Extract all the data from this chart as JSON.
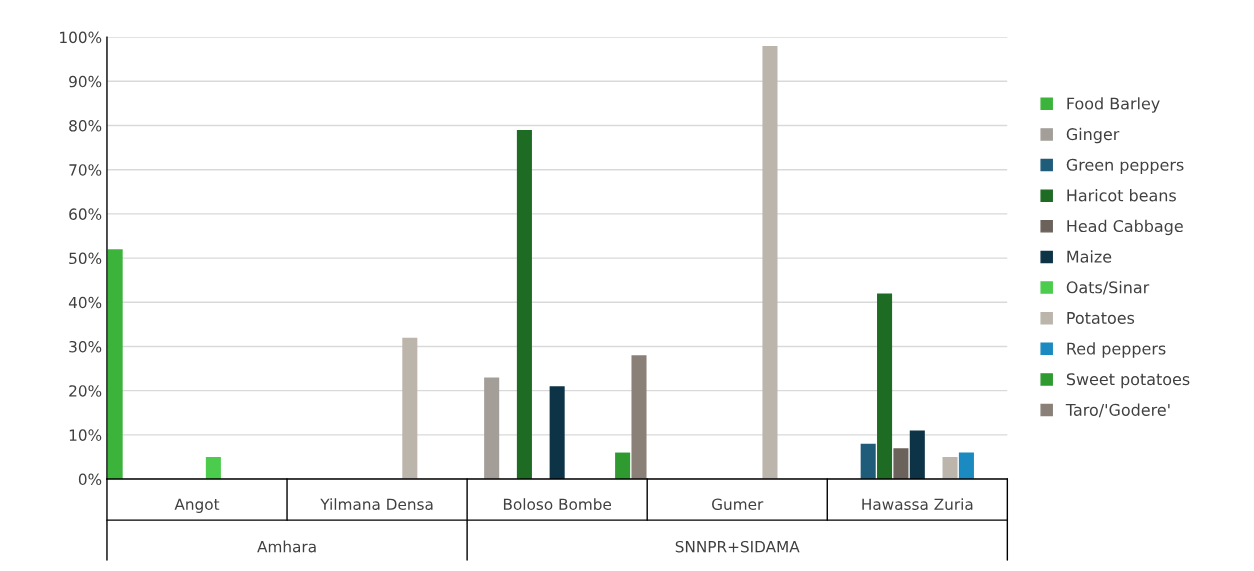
{
  "chart_data": {
    "type": "bar",
    "categories": [
      "Angot",
      "Yilmana Densa",
      "Boloso Bombe",
      "Gumer",
      "Hawassa Zuria"
    ],
    "series": [
      {
        "name": "Food Barley",
        "color": "#3cb43c",
        "values": [
          52,
          0,
          0,
          0,
          0
        ]
      },
      {
        "name": "Ginger",
        "color": "#a39e98",
        "values": [
          0,
          0,
          23,
          0,
          0
        ]
      },
      {
        "name": "Green peppers",
        "color": "#1f5c7a",
        "values": [
          0,
          0,
          0,
          0,
          8
        ]
      },
      {
        "name": "Haricot beans",
        "color": "#1e6b23",
        "values": [
          0,
          0,
          79,
          0,
          42
        ]
      },
      {
        "name": "Head Cabbage",
        "color": "#6b625b",
        "values": [
          0,
          0,
          0,
          0,
          7
        ]
      },
      {
        "name": "Maize",
        "color": "#0d3346",
        "values": [
          0,
          0,
          21,
          0,
          11
        ]
      },
      {
        "name": "Oats/Sinar",
        "color": "#4ccc4c",
        "values": [
          5,
          0,
          0,
          0,
          0
        ]
      },
      {
        "name": "Potatoes",
        "color": "#bcb5ab",
        "values": [
          0,
          32,
          0,
          98,
          5
        ]
      },
      {
        "name": "Red peppers",
        "color": "#1a8ac0",
        "values": [
          0,
          0,
          0,
          0,
          6
        ]
      },
      {
        "name": "Sweet potatoes",
        "color": "#2e9a30",
        "values": [
          0,
          0,
          6,
          0,
          0
        ]
      },
      {
        "name": "Taro/'Godere'",
        "color": "#8a8078",
        "values": [
          0,
          0,
          28,
          0,
          0
        ]
      }
    ],
    "annotations": [
      "Amhara",
      "SNNPR+SIDAMA"
    ],
    "ylim": [
      0,
      100
    ],
    "yticks": [
      {
        "value": 0,
        "label": "0%"
      },
      {
        "value": 10,
        "label": "10%"
      },
      {
        "value": 20,
        "label": "20%"
      },
      {
        "value": 30,
        "label": "30%"
      },
      {
        "value": 40,
        "label": "40%"
      },
      {
        "value": 50,
        "label": "50%"
      },
      {
        "value": 60,
        "label": "60%"
      },
      {
        "value": 70,
        "label": "70%"
      },
      {
        "value": 80,
        "label": "80%"
      },
      {
        "value": 90,
        "label": "90%"
      },
      {
        "value": 100,
        "label": "100%"
      }
    ],
    "grid": "y",
    "legend": "right"
  }
}
